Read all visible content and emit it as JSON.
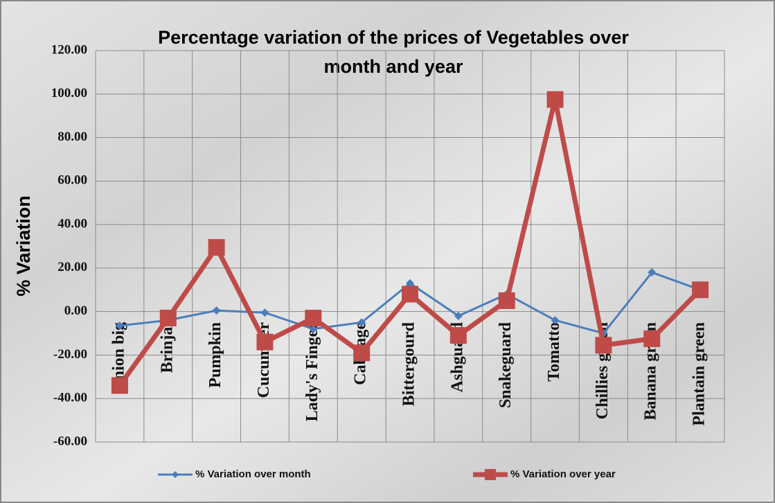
{
  "chart_data": {
    "type": "line",
    "title": "Percentage variation of the prices of Vegetables over",
    "subtitle": "month and year",
    "y_label": "% Variation",
    "categories": [
      "Onion big",
      "Brinjal",
      "Pumpkin",
      "Cucumber",
      "Lady's Finger",
      "Cabbage",
      "Bittergourd",
      "Ashguard",
      "Snakeguard",
      "Tomatto",
      "Chillies green",
      "Banana green",
      "Plantain green"
    ],
    "series": [
      {
        "name": "%  Variation over month",
        "color": "#4a7ebb",
        "marker": "diamond",
        "values": [
          -6.5,
          -4,
          0.5,
          -0.5,
          -8,
          -5,
          13,
          -2,
          8,
          -4,
          -10,
          18,
          10
        ]
      },
      {
        "name": "%  Variation over year",
        "color": "#be4b48",
        "marker": "square",
        "values": [
          -34,
          -3,
          29.5,
          -14,
          -3,
          -19,
          8,
          -11,
          5,
          97.5,
          -15.5,
          -12.5,
          10
        ]
      }
    ],
    "ylim": [
      -60,
      120
    ],
    "yticks": [
      {
        "value": -60,
        "label": "-60.00"
      },
      {
        "value": -40,
        "label": "-40.00"
      },
      {
        "value": -20,
        "label": "-20.00"
      },
      {
        "value": 0,
        "label": "0.00"
      },
      {
        "value": 20,
        "label": "20.00"
      },
      {
        "value": 40,
        "label": "40.00"
      },
      {
        "value": 60,
        "label": "60.00"
      },
      {
        "value": 80,
        "label": "80.00"
      },
      {
        "value": 100,
        "label": "100.00"
      },
      {
        "value": 120,
        "label": "120.00"
      }
    ],
    "grid": true,
    "legend": "bottom"
  }
}
